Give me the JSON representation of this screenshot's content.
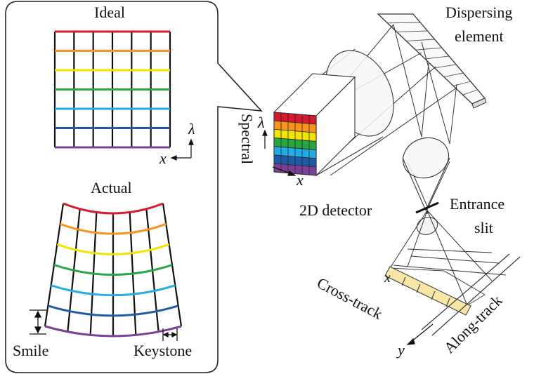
{
  "labels": {
    "ideal": "Ideal",
    "actual": "Actual",
    "smile": "Smile",
    "keystone": "Keystone",
    "dispersing_element_line1": "Dispersing",
    "dispersing_element_line2": "element",
    "spectral": "Spectral",
    "detector": "2D detector",
    "entrance_slit_line1": "Entrance",
    "entrance_slit_line2": "slit",
    "cross_track": "Cross-track",
    "along_track": "Along-track"
  },
  "axes": {
    "lambda": "λ",
    "x": "x",
    "y": "y"
  },
  "colors": {
    "rows": [
      "#d7192f",
      "#f7941d",
      "#f2e300",
      "#27a642",
      "#22aee5",
      "#1f5aa6",
      "#7d3f98"
    ],
    "grid_lines": "#111111",
    "slit_footprint": "#f7e7a6",
    "outline": "#333333"
  }
}
